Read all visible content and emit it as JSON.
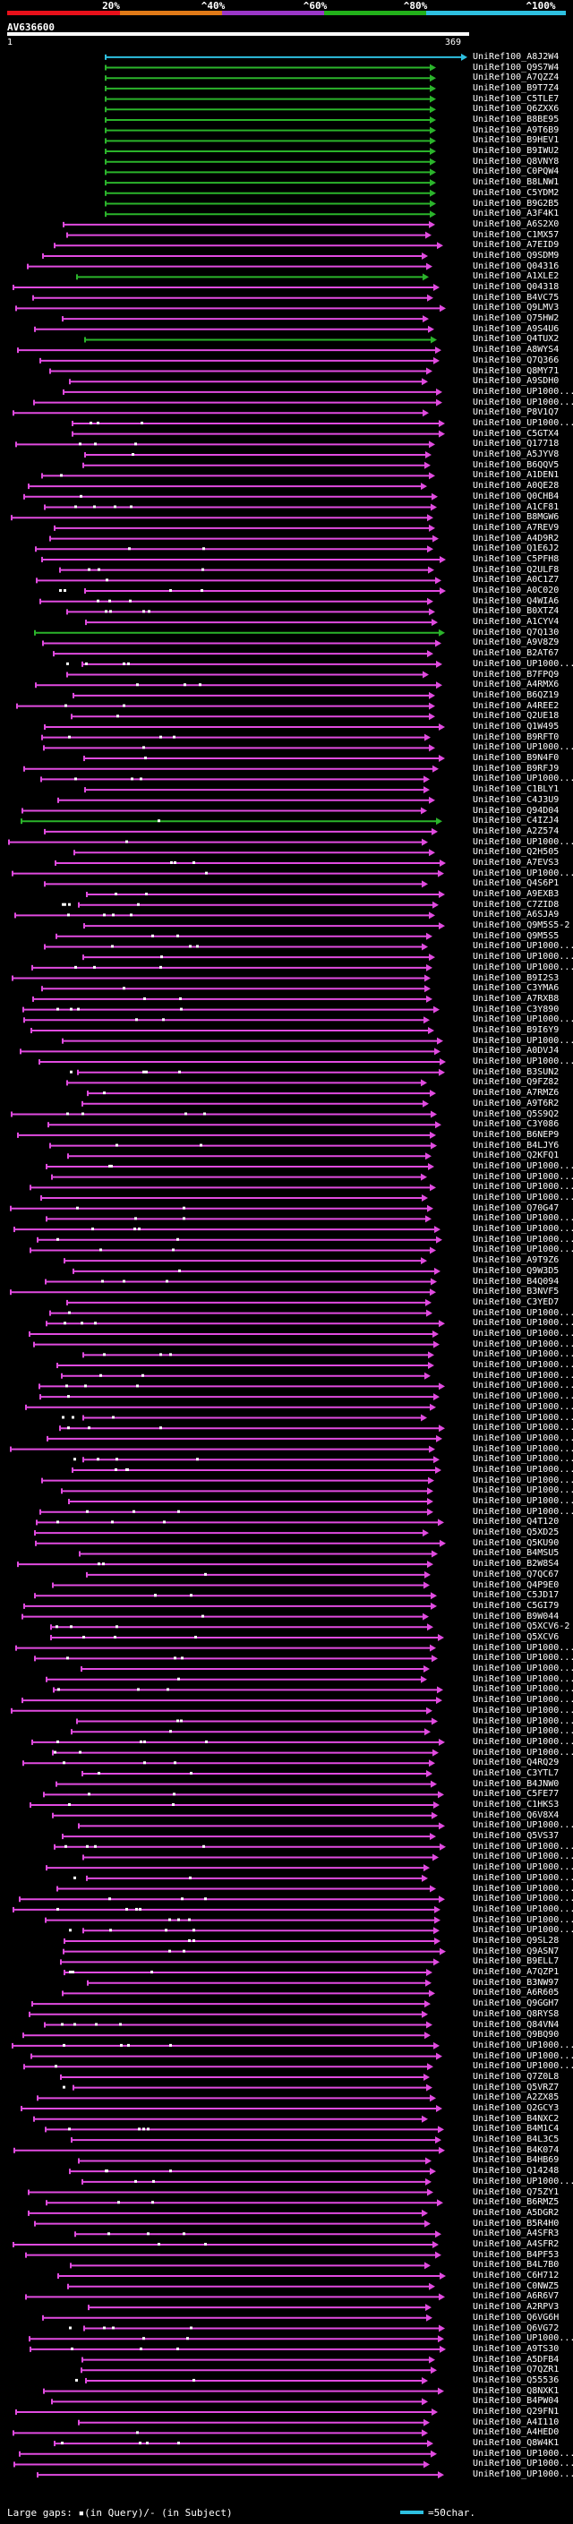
{
  "legend": {
    "ticks": [
      "20%",
      "^40%",
      "^60%",
      "^80%",
      "^100%"
    ],
    "colors": [
      "#e8101a",
      "#e07a18",
      "#9b37c8",
      "#22b01a",
      "#2ec0e0"
    ]
  },
  "query": {
    "name": "AV636600",
    "start": "1",
    "end": "369"
  },
  "hit_colors": {
    "magenta": "#e14be0",
    "green": "#2bb42b",
    "cyan": "#2ec0e0"
  },
  "hits": [
    {
      "id": "UniRef100_A8J2W4",
      "c": "cyan"
    },
    {
      "id": "UniRef100_Q9S7W4",
      "c": "green"
    },
    {
      "id": "UniRef100_A7QZZ4",
      "c": "green"
    },
    {
      "id": "UniRef100_B9T7Z4",
      "c": "green"
    },
    {
      "id": "UniRef100_C5TLE7",
      "c": "green"
    },
    {
      "id": "UniRef100_Q6ZXX6",
      "c": "green"
    },
    {
      "id": "UniRef100_B8BE95",
      "c": "green"
    },
    {
      "id": "UniRef100_A9T6B9",
      "c": "green"
    },
    {
      "id": "UniRef100_B9HEV1",
      "c": "green"
    },
    {
      "id": "UniRef100_B9IWU2",
      "c": "green"
    },
    {
      "id": "UniRef100_Q8VNY8",
      "c": "green"
    },
    {
      "id": "UniRef100_C0PQW4",
      "c": "green"
    },
    {
      "id": "UniRef100_B8LNW1",
      "c": "green"
    },
    {
      "id": "UniRef100_C5YDM2",
      "c": "green"
    },
    {
      "id": "UniRef100_B9G2B5",
      "c": "green"
    },
    {
      "id": "UniRef100_A3F4K1",
      "c": "green"
    },
    {
      "id": "UniRef100_A6S2X0",
      "c": "magenta"
    },
    {
      "id": "UniRef100_C1MX57",
      "c": "magenta"
    },
    {
      "id": "UniRef100_A7EID9",
      "c": "magenta"
    },
    {
      "id": "UniRef100_Q9SDM9",
      "c": "magenta"
    },
    {
      "id": "UniRef100_Q04316",
      "c": "magenta"
    },
    {
      "id": "UniRef100_A1XLE2",
      "c": "green"
    },
    {
      "id": "UniRef100_Q04318",
      "c": "magenta"
    },
    {
      "id": "UniRef100_B4VC75",
      "c": "magenta"
    },
    {
      "id": "UniRef100_Q9LMV3",
      "c": "magenta"
    },
    {
      "id": "UniRef100_Q75HW2",
      "c": "magenta"
    },
    {
      "id": "UniRef100_A9S4U6",
      "c": "magenta"
    },
    {
      "id": "UniRef100_Q4TUX2",
      "c": "green"
    },
    {
      "id": "UniRef100_A8WYS4",
      "c": "magenta"
    },
    {
      "id": "UniRef100_Q7Q366",
      "c": "magenta"
    },
    {
      "id": "UniRef100_Q8MY71",
      "c": "magenta"
    },
    {
      "id": "UniRef100_A9SDH0",
      "c": "magenta"
    },
    {
      "id": "UniRef100_UP1000...",
      "c": "magenta"
    },
    {
      "id": "UniRef100_UP1000...",
      "c": "magenta"
    },
    {
      "id": "UniRef100_P8V1Q7",
      "c": "magenta"
    },
    {
      "id": "UniRef100_UP1000...",
      "c": "magenta"
    },
    {
      "id": "UniRef100_C5GTX4",
      "c": "magenta"
    },
    {
      "id": "UniRef100_Q17718",
      "c": "magenta"
    },
    {
      "id": "UniRef100_A5JYV8",
      "c": "magenta"
    },
    {
      "id": "UniRef100_B6QQV5",
      "c": "magenta"
    },
    {
      "id": "UniRef100_A1DEN1",
      "c": "magenta"
    },
    {
      "id": "UniRef100_A0QE28",
      "c": "magenta"
    },
    {
      "id": "UniRef100_Q0CHB4",
      "c": "magenta"
    },
    {
      "id": "UniRef100_A1CF81",
      "c": "magenta"
    },
    {
      "id": "UniRef100_B8MGW6",
      "c": "magenta"
    },
    {
      "id": "UniRef100_A7REV9",
      "c": "magenta"
    },
    {
      "id": "UniRef100_A4D9R2",
      "c": "magenta"
    },
    {
      "id": "UniRef100_Q1E6J2",
      "c": "magenta"
    },
    {
      "id": "UniRef100_C5PFH8",
      "c": "magenta"
    },
    {
      "id": "UniRef100_Q2ULF8",
      "c": "magenta"
    },
    {
      "id": "UniRef100_A0C1Z7",
      "c": "magenta"
    },
    {
      "id": "UniRef100_A0C020",
      "c": "magenta"
    },
    {
      "id": "UniRef100_Q4WIA6",
      "c": "magenta"
    },
    {
      "id": "UniRef100_B0XTZ4",
      "c": "magenta"
    },
    {
      "id": "UniRef100_A1CYV4",
      "c": "magenta"
    },
    {
      "id": "UniRef100_Q7Q130",
      "c": "green"
    },
    {
      "id": "UniRef100_A9V8Z9",
      "c": "magenta"
    },
    {
      "id": "UniRef100_B2AT67",
      "c": "magenta"
    },
    {
      "id": "UniRef100_UP1000...",
      "c": "magenta"
    },
    {
      "id": "UniRef100_B7FPQ9",
      "c": "magenta"
    },
    {
      "id": "UniRef100_A4RMX6",
      "c": "magenta"
    },
    {
      "id": "UniRef100_B6QZ19",
      "c": "magenta"
    },
    {
      "id": "UniRef100_A4REE2",
      "c": "magenta"
    },
    {
      "id": "UniRef100_Q2UE18",
      "c": "magenta"
    },
    {
      "id": "UniRef100_Q1W495",
      "c": "magenta"
    },
    {
      "id": "UniRef100_B9RFT0",
      "c": "magenta"
    },
    {
      "id": "UniRef100_UP1000...",
      "c": "magenta"
    },
    {
      "id": "UniRef100_B9N4F0",
      "c": "magenta"
    },
    {
      "id": "UniRef100_B9RFJ9",
      "c": "magenta"
    },
    {
      "id": "UniRef100_UP1000...",
      "c": "magenta"
    },
    {
      "id": "UniRef100_C1BLY1",
      "c": "magenta"
    },
    {
      "id": "UniRef100_C4J3U9",
      "c": "magenta"
    },
    {
      "id": "UniRef100_Q94D04",
      "c": "magenta"
    },
    {
      "id": "UniRef100_C4IZJ4",
      "c": "green"
    },
    {
      "id": "UniRef100_A2Z574",
      "c": "magenta"
    },
    {
      "id": "UniRef100_UP1000...",
      "c": "magenta"
    },
    {
      "id": "UniRef100_Q2H505",
      "c": "magenta"
    },
    {
      "id": "UniRef100_A7EVS3",
      "c": "magenta"
    },
    {
      "id": "UniRef100_UP1000...",
      "c": "magenta"
    },
    {
      "id": "UniRef100_Q4S6P1",
      "c": "magenta"
    },
    {
      "id": "UniRef100_A9EXB3",
      "c": "magenta"
    },
    {
      "id": "UniRef100_C7ZID8",
      "c": "magenta"
    },
    {
      "id": "UniRef100_A6SJA9",
      "c": "magenta"
    },
    {
      "id": "UniRef100_Q9M5S5-2",
      "c": "magenta"
    },
    {
      "id": "UniRef100_Q9M5S5",
      "c": "magenta"
    },
    {
      "id": "UniRef100_UP1000...",
      "c": "magenta"
    },
    {
      "id": "UniRef100_UP1000...",
      "c": "magenta"
    },
    {
      "id": "UniRef100_UP1000...",
      "c": "magenta"
    },
    {
      "id": "UniRef100_B9I2S3",
      "c": "magenta"
    },
    {
      "id": "UniRef100_C3YMA6",
      "c": "magenta"
    },
    {
      "id": "UniRef100_A7RXB8",
      "c": "magenta"
    },
    {
      "id": "UniRef100_C3Y890",
      "c": "magenta"
    },
    {
      "id": "UniRef100_UP1000...",
      "c": "magenta"
    },
    {
      "id": "UniRef100_B9I6Y9",
      "c": "magenta"
    },
    {
      "id": "UniRef100_UP1000...",
      "c": "magenta"
    },
    {
      "id": "UniRef100_A0DVJ4",
      "c": "magenta"
    },
    {
      "id": "UniRef100_UP1000...",
      "c": "magenta"
    },
    {
      "id": "UniRef100_B3SUN2",
      "c": "magenta"
    },
    {
      "id": "UniRef100_Q9FZ82",
      "c": "magenta"
    },
    {
      "id": "UniRef100_A7RMZ6",
      "c": "magenta"
    },
    {
      "id": "UniRef100_A9T6R2",
      "c": "magenta"
    },
    {
      "id": "UniRef100_Q5S9Q2",
      "c": "magenta"
    },
    {
      "id": "UniRef100_C3Y086",
      "c": "magenta"
    },
    {
      "id": "UniRef100_B6NEP9",
      "c": "magenta"
    },
    {
      "id": "UniRef100_B4LJY6",
      "c": "magenta"
    },
    {
      "id": "UniRef100_Q2KFQ1",
      "c": "magenta"
    },
    {
      "id": "UniRef100_UP1000...",
      "c": "magenta"
    },
    {
      "id": "UniRef100_UP1000...",
      "c": "magenta"
    },
    {
      "id": "UniRef100_UP1000...",
      "c": "magenta"
    },
    {
      "id": "UniRef100_UP1000...",
      "c": "magenta"
    },
    {
      "id": "UniRef100_Q70G47",
      "c": "magenta"
    },
    {
      "id": "UniRef100_UP1000...",
      "c": "magenta"
    },
    {
      "id": "UniRef100_UP1000...",
      "c": "magenta"
    },
    {
      "id": "UniRef100_UP1000...",
      "c": "magenta"
    },
    {
      "id": "UniRef100_UP1000...",
      "c": "magenta"
    },
    {
      "id": "UniRef100_A9T9Z6",
      "c": "magenta"
    },
    {
      "id": "UniRef100_Q9W3D5",
      "c": "magenta"
    },
    {
      "id": "UniRef100_B4Q094",
      "c": "magenta"
    },
    {
      "id": "UniRef100_B3NVF5",
      "c": "magenta"
    },
    {
      "id": "UniRef100_C3YED7",
      "c": "magenta"
    },
    {
      "id": "UniRef100_UP1000...",
      "c": "magenta"
    },
    {
      "id": "UniRef100_UP1000...",
      "c": "magenta"
    },
    {
      "id": "UniRef100_UP1000...",
      "c": "magenta"
    },
    {
      "id": "UniRef100_UP1000...",
      "c": "magenta"
    },
    {
      "id": "UniRef100_UP1000...",
      "c": "magenta"
    },
    {
      "id": "UniRef100_UP1000...",
      "c": "magenta"
    },
    {
      "id": "UniRef100_UP1000...",
      "c": "magenta"
    },
    {
      "id": "UniRef100_UP1000...",
      "c": "magenta"
    },
    {
      "id": "UniRef100_UP1000...",
      "c": "magenta"
    },
    {
      "id": "UniRef100_UP1000...",
      "c": "magenta"
    },
    {
      "id": "UniRef100_UP1000...",
      "c": "magenta"
    },
    {
      "id": "UniRef100_UP1000...",
      "c": "magenta"
    },
    {
      "id": "UniRef100_UP1000...",
      "c": "magenta"
    },
    {
      "id": "UniRef100_UP1000...",
      "c": "magenta"
    },
    {
      "id": "UniRef100_UP1000...",
      "c": "magenta"
    },
    {
      "id": "UniRef100_UP1000...",
      "c": "magenta"
    },
    {
      "id": "UniRef100_UP1000...",
      "c": "magenta"
    },
    {
      "id": "UniRef100_UP1000...",
      "c": "magenta"
    },
    {
      "id": "UniRef100_UP1000...",
      "c": "magenta"
    },
    {
      "id": "UniRef100_UP1000...",
      "c": "magenta"
    },
    {
      "id": "UniRef100_Q4T120",
      "c": "magenta"
    },
    {
      "id": "UniRef100_Q5XD25",
      "c": "magenta"
    },
    {
      "id": "UniRef100_Q5KU90",
      "c": "magenta"
    },
    {
      "id": "UniRef100_B4MSU5",
      "c": "magenta"
    },
    {
      "id": "UniRef100_B2W8S4",
      "c": "magenta"
    },
    {
      "id": "UniRef100_Q7QC67",
      "c": "magenta"
    },
    {
      "id": "UniRef100_Q4P9E0",
      "c": "magenta"
    },
    {
      "id": "UniRef100_C5JD17",
      "c": "magenta"
    },
    {
      "id": "UniRef100_C5GI79",
      "c": "magenta"
    },
    {
      "id": "UniRef100_B9W044",
      "c": "magenta"
    },
    {
      "id": "UniRef100_Q5XCV6-2",
      "c": "magenta"
    },
    {
      "id": "UniRef100_Q5XCV6",
      "c": "magenta"
    },
    {
      "id": "UniRef100_UP1000...",
      "c": "magenta"
    },
    {
      "id": "UniRef100_UP1000...",
      "c": "magenta"
    },
    {
      "id": "UniRef100_UP1000...",
      "c": "magenta"
    },
    {
      "id": "UniRef100_UP1000...",
      "c": "magenta"
    },
    {
      "id": "UniRef100_UP1000...",
      "c": "magenta"
    },
    {
      "id": "UniRef100_UP1000...",
      "c": "magenta"
    },
    {
      "id": "UniRef100_UP1000...",
      "c": "magenta"
    },
    {
      "id": "UniRef100_UP1000...",
      "c": "magenta"
    },
    {
      "id": "UniRef100_UP1000...",
      "c": "magenta"
    },
    {
      "id": "UniRef100_UP1000...",
      "c": "magenta"
    },
    {
      "id": "UniRef100_UP1000...",
      "c": "magenta"
    },
    {
      "id": "UniRef100_Q4RQ29",
      "c": "magenta"
    },
    {
      "id": "UniRef100_C3YTL7",
      "c": "magenta"
    },
    {
      "id": "UniRef100_B4JNW0",
      "c": "magenta"
    },
    {
      "id": "UniRef100_C5FE77",
      "c": "magenta"
    },
    {
      "id": "UniRef100_C1HKS3",
      "c": "magenta"
    },
    {
      "id": "UniRef100_Q6V8X4",
      "c": "magenta"
    },
    {
      "id": "UniRef100_UP1000...",
      "c": "magenta"
    },
    {
      "id": "UniRef100_Q5VS37",
      "c": "magenta"
    },
    {
      "id": "UniRef100_UP1000...",
      "c": "magenta"
    },
    {
      "id": "UniRef100_UP1000...",
      "c": "magenta"
    },
    {
      "id": "UniRef100_UP1000...",
      "c": "magenta"
    },
    {
      "id": "UniRef100_UP1000...",
      "c": "magenta"
    },
    {
      "id": "UniRef100_UP1000...",
      "c": "magenta"
    },
    {
      "id": "UniRef100_UP1000...",
      "c": "magenta"
    },
    {
      "id": "UniRef100_UP1000...",
      "c": "magenta"
    },
    {
      "id": "UniRef100_UP1000...",
      "c": "magenta"
    },
    {
      "id": "UniRef100_UP1000...",
      "c": "magenta"
    },
    {
      "id": "UniRef100_Q9SL28",
      "c": "magenta"
    },
    {
      "id": "UniRef100_Q9ASN7",
      "c": "magenta"
    },
    {
      "id": "UniRef100_B9ELL7",
      "c": "magenta"
    },
    {
      "id": "UniRef100_A7QZP1",
      "c": "magenta"
    },
    {
      "id": "UniRef100_B3NW97",
      "c": "magenta"
    },
    {
      "id": "UniRef100_A6R605",
      "c": "magenta"
    },
    {
      "id": "UniRef100_Q9GGH7",
      "c": "magenta"
    },
    {
      "id": "UniRef100_Q8RYS8",
      "c": "magenta"
    },
    {
      "id": "UniRef100_Q84VN4",
      "c": "magenta"
    },
    {
      "id": "UniRef100_Q9BQ90",
      "c": "magenta"
    },
    {
      "id": "UniRef100_UP1000...",
      "c": "magenta"
    },
    {
      "id": "UniRef100_UP1000...",
      "c": "magenta"
    },
    {
      "id": "UniRef100_UP1000...",
      "c": "magenta"
    },
    {
      "id": "UniRef100_Q7Z0L8",
      "c": "magenta"
    },
    {
      "id": "UniRef100_Q5VRZ7",
      "c": "magenta"
    },
    {
      "id": "UniRef100_A2ZX85",
      "c": "magenta"
    },
    {
      "id": "UniRef100_Q2GCY3",
      "c": "magenta"
    },
    {
      "id": "UniRef100_B4NXC2",
      "c": "magenta"
    },
    {
      "id": "UniRef100_B4M1C4",
      "c": "magenta"
    },
    {
      "id": "UniRef100_B4L3C5",
      "c": "magenta"
    },
    {
      "id": "UniRef100_B4K074",
      "c": "magenta"
    },
    {
      "id": "UniRef100_B4HB69",
      "c": "magenta"
    },
    {
      "id": "UniRef100_Q14248",
      "c": "magenta"
    },
    {
      "id": "UniRef100_UP1000...",
      "c": "magenta"
    },
    {
      "id": "UniRef100_Q75ZY1",
      "c": "magenta"
    },
    {
      "id": "UniRef100_B6RMZ5",
      "c": "magenta"
    },
    {
      "id": "UniRef100_A5DGR2",
      "c": "magenta"
    },
    {
      "id": "UniRef100_B5R4H0",
      "c": "magenta"
    },
    {
      "id": "UniRef100_A4SFR3",
      "c": "magenta"
    },
    {
      "id": "UniRef100_A4SFR2",
      "c": "magenta"
    },
    {
      "id": "UniRef100_B4PF53",
      "c": "magenta"
    },
    {
      "id": "UniRef100_B4L7B0",
      "c": "magenta"
    },
    {
      "id": "UniRef100_C6H712",
      "c": "magenta"
    },
    {
      "id": "UniRef100_C0NWZ5",
      "c": "magenta"
    },
    {
      "id": "UniRef100_A6R6V7",
      "c": "magenta"
    },
    {
      "id": "UniRef100_A2RPV3",
      "c": "magenta"
    },
    {
      "id": "UniRef100_Q6VG6H",
      "c": "magenta"
    },
    {
      "id": "UniRef100_Q6VG72",
      "c": "magenta"
    },
    {
      "id": "UniRef100_UP1000...",
      "c": "magenta"
    },
    {
      "id": "UniRef100_A9TS30",
      "c": "magenta"
    },
    {
      "id": "UniRef100_A5DFB4",
      "c": "magenta"
    },
    {
      "id": "UniRef100_Q7QZR1",
      "c": "magenta"
    },
    {
      "id": "UniRef100_Q55536",
      "c": "magenta"
    },
    {
      "id": "UniRef100_Q8NXK1",
      "c": "magenta"
    },
    {
      "id": "UniRef100_B4PW04",
      "c": "magenta"
    },
    {
      "id": "UniRef100_Q29FN1",
      "c": "magenta"
    },
    {
      "id": "UniRef100_A4I110",
      "c": "magenta"
    },
    {
      "id": "UniRef100_A4HED0",
      "c": "magenta"
    },
    {
      "id": "UniRef100_Q8W4K1",
      "c": "magenta"
    },
    {
      "id": "UniRef100_UP1000...",
      "c": "magenta"
    },
    {
      "id": "UniRef100_UP1000...",
      "c": "magenta"
    },
    {
      "id": "UniRef100_UP1000...",
      "c": "magenta"
    }
  ],
  "footer": {
    "gaps_text": "Large gaps: ▪(in Query)/- (in Subject)",
    "key_text": "=50char."
  }
}
